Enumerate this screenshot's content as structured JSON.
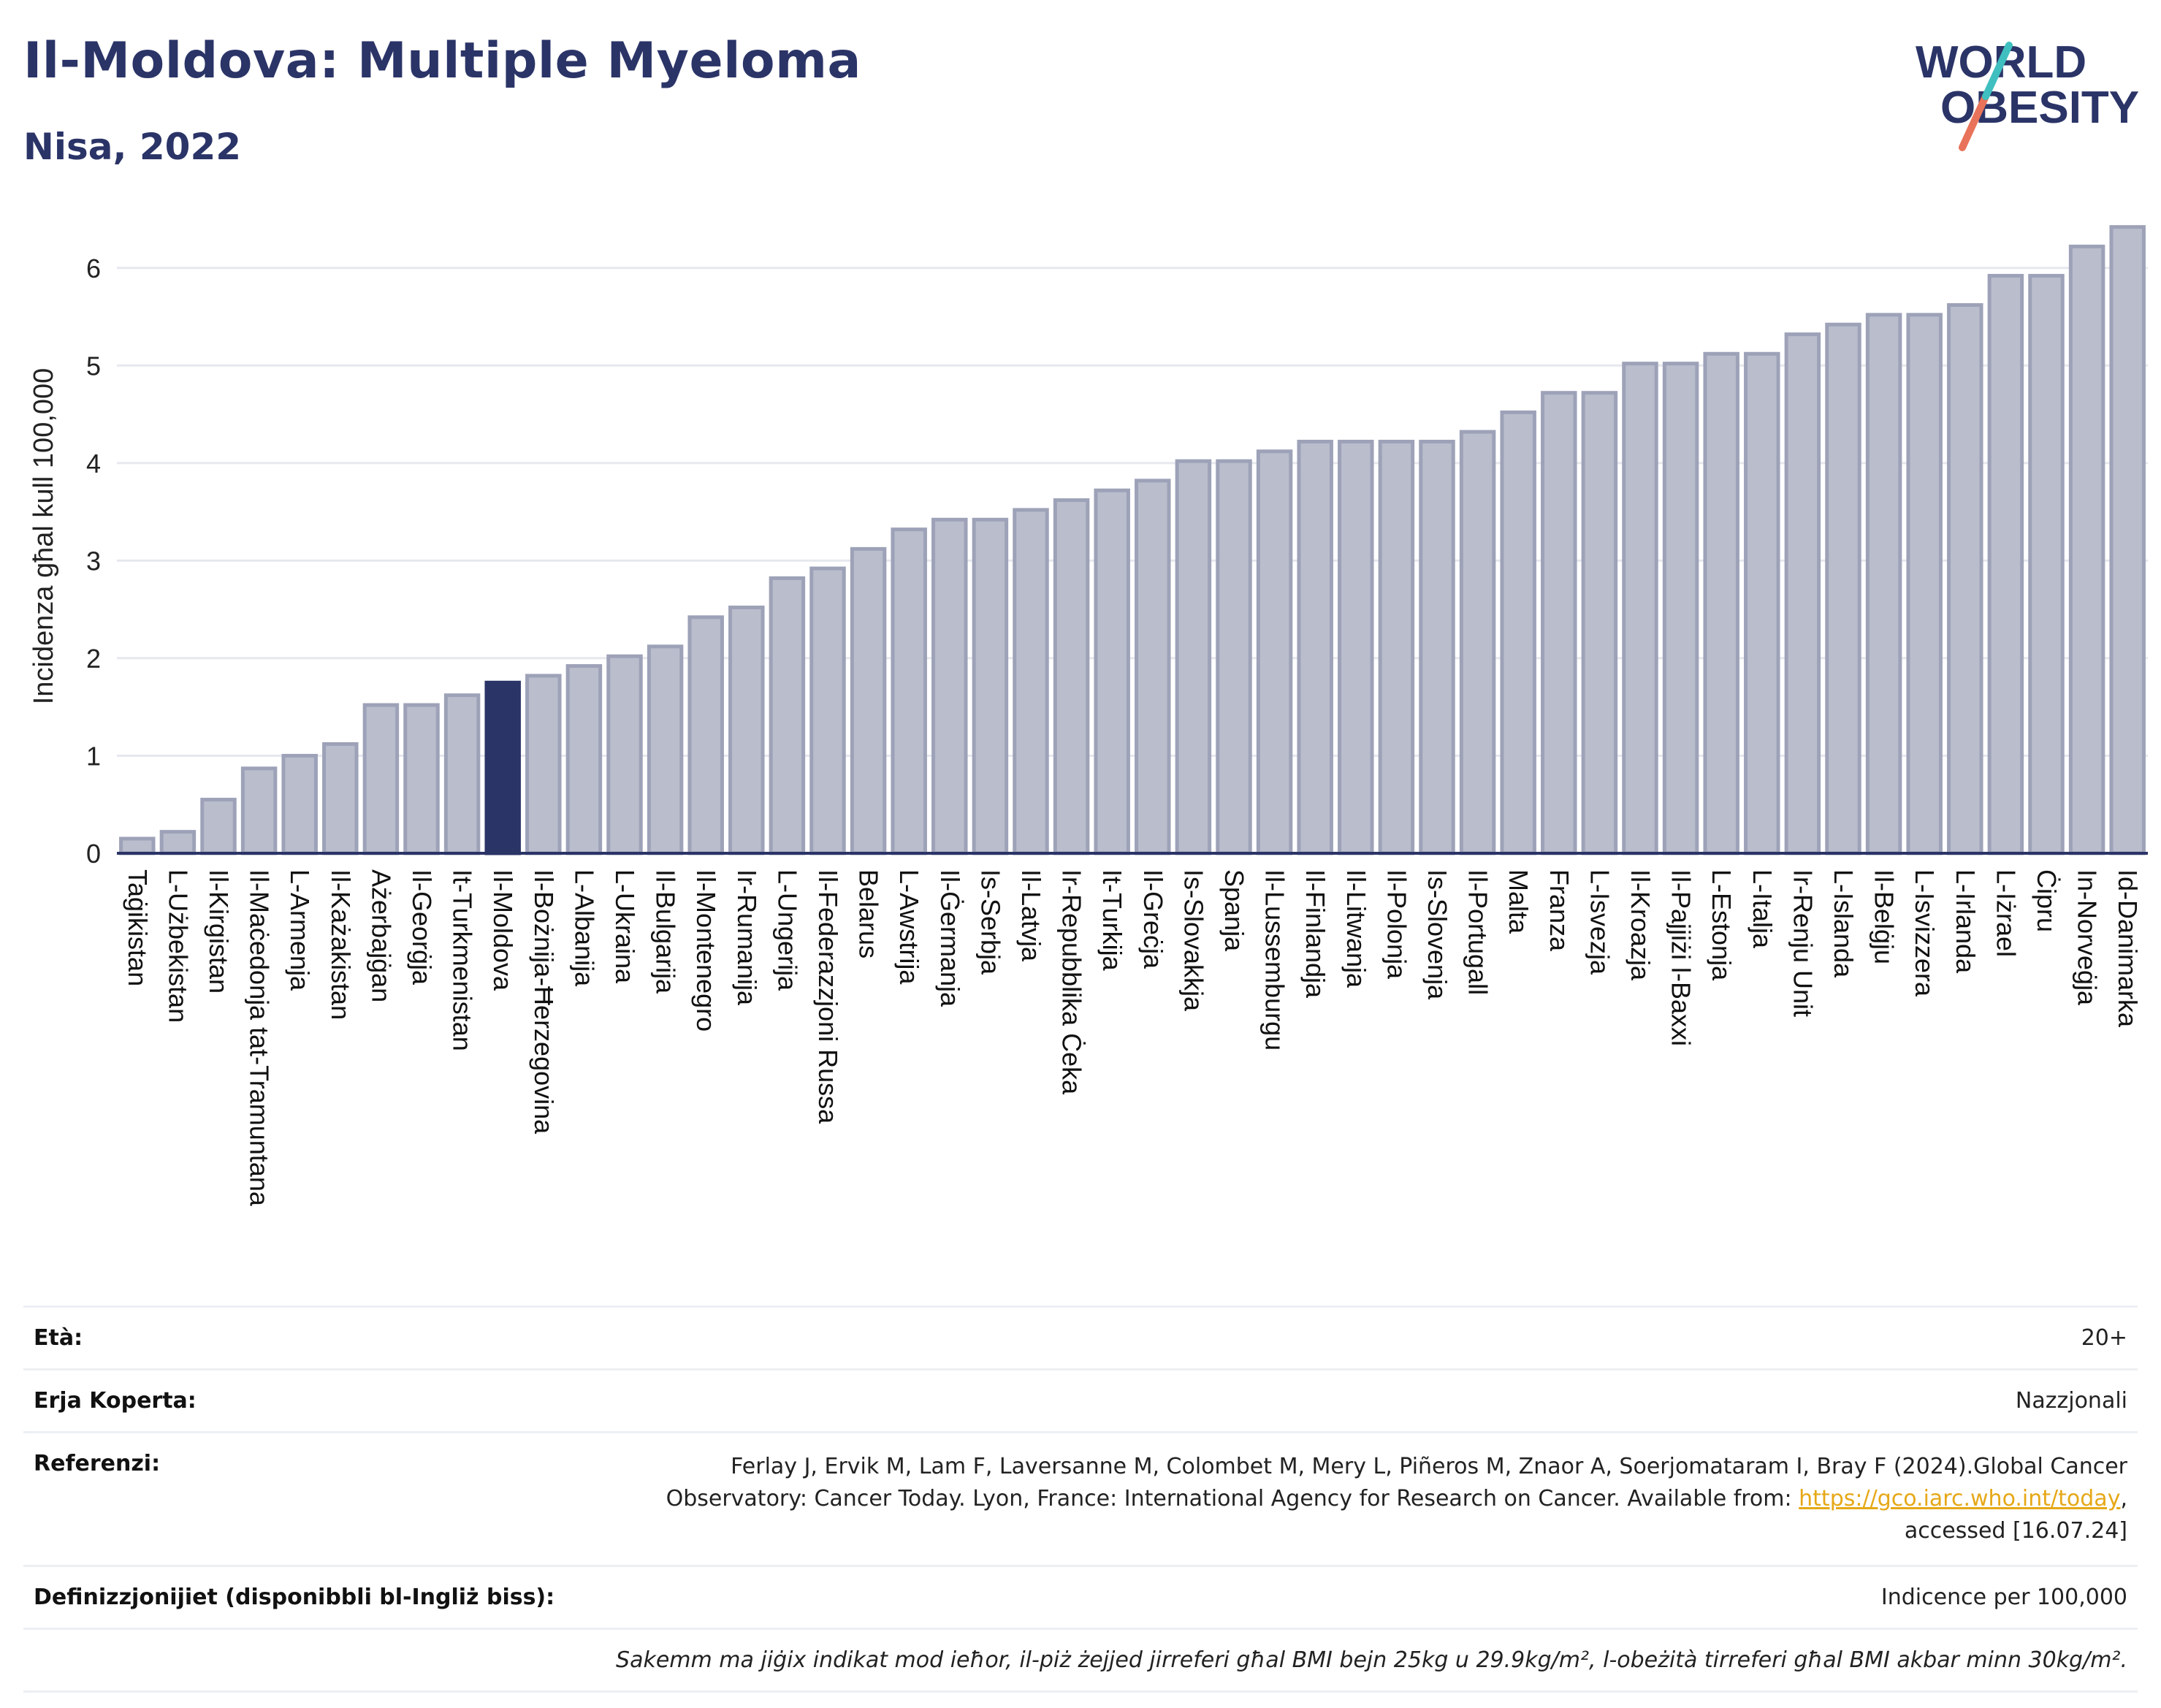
{
  "header": {
    "title": "Il-Moldova: Multiple Myeloma",
    "subtitle": "Nisa, 2022"
  },
  "logo": {
    "line1": "WORLD",
    "line2": "OBESITY",
    "colors": {
      "text": "#2b3467",
      "slash_top": "#3fbfbf",
      "slash_bottom": "#e8735a"
    }
  },
  "chart_data": {
    "type": "bar",
    "ylabel": "Incidenza għal kull 100,000",
    "ylim": [
      0,
      6.5
    ],
    "yticks": [
      0,
      1,
      2,
      3,
      4,
      5,
      6
    ],
    "grid": true,
    "highlight": "Il-Moldova",
    "colors": {
      "bar": "#b9bdcc",
      "bar_edge": "#9da2b8",
      "highlight": "#2b3467",
      "axis": "#2b3467"
    },
    "categories": [
      "Taġikistan",
      "L-Użbekistan",
      "Il-Kirgistan",
      "Il-Maċedonja tat-Tramuntana",
      "L-Armenja",
      "Il-Każakistan",
      "Ażerbajġan",
      "Il-Georġja",
      "It-Turkmenistan",
      "Il-Moldova",
      "Il-Bożnija-Ħerzegovina",
      "L-Albanija",
      "L-Ukraina",
      "Il-Bulgarija",
      "Il-Montenegro",
      "Ir-Rumanija",
      "L-Ungerija",
      "Il-Federazzjoni Russa",
      "Belarus",
      "L-Awstrija",
      "Il-Ġermanja",
      "Is-Serbja",
      "Il-Latvja",
      "Ir-Repubblika Ċeka",
      "It-Turkija",
      "Il-Greċja",
      "Is-Slovakkja",
      "Spanja",
      "Il-Lussemburgu",
      "Il-Finlandja",
      "Il-Litwanja",
      "Il-Polonja",
      "Is-Slovenja",
      "Il-Portugall",
      "Malta",
      "Franza",
      "L-Isvezja",
      "Il-Kroazja",
      "Il-Pajjiżi l-Baxxi",
      "L-Estonja",
      "L-Italja",
      "Ir-Renju Unit",
      "L-Islanda",
      "Il-Belġju",
      "L-Isvizzera",
      "L-Irlanda",
      "L-Iżrael",
      "Ċipru",
      "In-Norveġja",
      "Id-Danimarka"
    ],
    "values": [
      0.15,
      0.22,
      0.55,
      0.87,
      1.0,
      1.12,
      1.52,
      1.52,
      1.62,
      1.75,
      1.82,
      1.92,
      2.02,
      2.12,
      2.42,
      2.52,
      2.82,
      2.92,
      3.12,
      3.32,
      3.42,
      3.42,
      3.52,
      3.62,
      3.72,
      3.82,
      4.02,
      4.02,
      4.12,
      4.22,
      4.22,
      4.22,
      4.22,
      4.32,
      4.52,
      4.72,
      4.72,
      5.02,
      5.02,
      5.12,
      5.12,
      5.32,
      5.42,
      5.52,
      5.52,
      5.62,
      5.92,
      5.92,
      6.22,
      6.42
    ]
  },
  "info": {
    "age_label": "Età:",
    "age_value": "20+",
    "area_label": "Erja Koperta:",
    "area_value": "Nazzjonali",
    "ref_label": "Referenzi:",
    "ref_text_1": "Ferlay J, Ervik M, Lam F, Laversanne M, Colombet M, Mery L, Piñeros M, Znaor A, Soerjomataram I, Bray F (2024).Global Cancer Observatory: Cancer Today. Lyon, France: International Agency for Research on Cancer. Available from: ",
    "ref_link": "https://gco.iarc.who.int/today",
    "ref_text_2": ", accessed [16.07.24]",
    "def_label": "Definizzjonijiet (disponibbli bl-Ingliż biss):",
    "def_value": "Indicence per 100,000",
    "note": "Sakemm ma jiġix indikat mod ieħor, il-piż żejjed jirreferi għal BMI bejn 25kg u 29.9kg/m², l-obeżità tirreferi għal BMI akbar minn 30kg/m²."
  }
}
